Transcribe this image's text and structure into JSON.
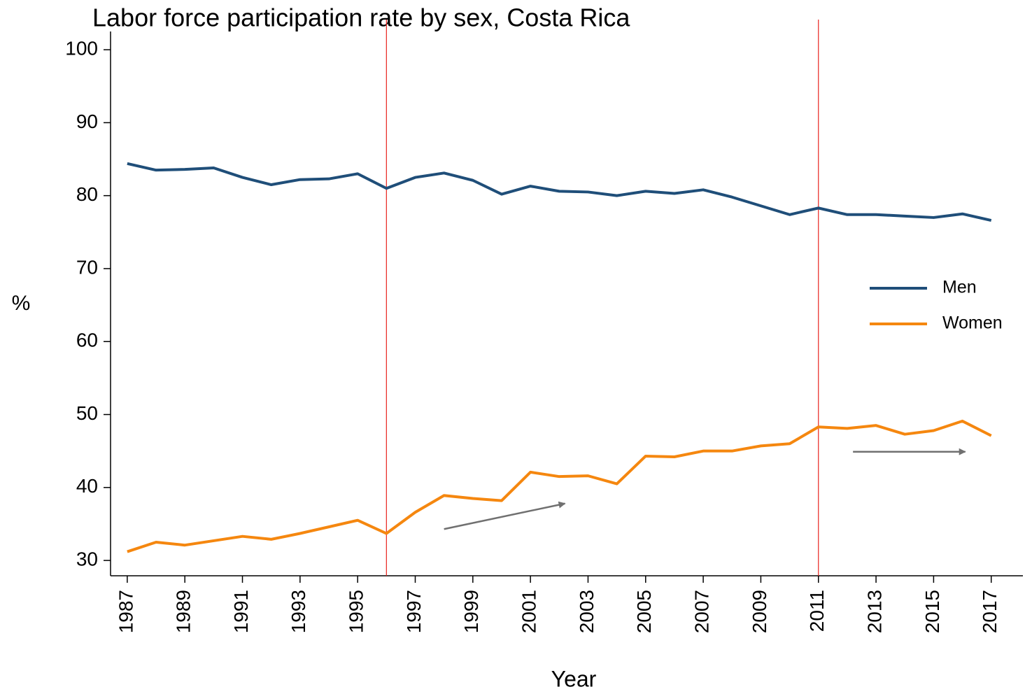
{
  "chart_data": {
    "type": "line",
    "title": "Labor force participation rate by sex, Costa Rica",
    "xlabel": "Year",
    "ylabel": "%",
    "x": [
      1987,
      1988,
      1989,
      1990,
      1991,
      1992,
      1993,
      1994,
      1995,
      1996,
      1997,
      1998,
      1999,
      2000,
      2001,
      2002,
      2003,
      2004,
      2005,
      2006,
      2007,
      2008,
      2009,
      2010,
      2011,
      2012,
      2013,
      2014,
      2015,
      2016,
      2017
    ],
    "series": [
      {
        "name": "Men",
        "color": "#1f4e79",
        "values": [
          84.4,
          83.5,
          83.6,
          83.8,
          82.5,
          81.5,
          82.2,
          82.3,
          83.0,
          81.0,
          82.5,
          83.1,
          82.1,
          80.2,
          81.3,
          80.6,
          80.5,
          80.0,
          80.6,
          80.3,
          80.8,
          79.8,
          78.6,
          77.4,
          78.3,
          77.4,
          77.4,
          77.2,
          77.0,
          77.5,
          76.6
        ]
      },
      {
        "name": "Women",
        "color": "#f5870f",
        "values": [
          31.2,
          32.5,
          32.1,
          32.7,
          33.3,
          32.9,
          33.7,
          34.6,
          35.5,
          33.7,
          36.6,
          38.9,
          38.5,
          38.2,
          42.1,
          41.5,
          41.6,
          40.5,
          44.3,
          44.2,
          45.0,
          45.0,
          45.7,
          46.0,
          48.3,
          48.1,
          48.5,
          47.3,
          47.8,
          49.1,
          47.1
        ]
      }
    ],
    "xlim": [
      1986.42,
      2018.1
    ],
    "ylim": [
      27.9,
      102.5
    ],
    "xticks": [
      1987,
      1989,
      1991,
      1993,
      1995,
      1997,
      1999,
      2001,
      2003,
      2005,
      2007,
      2009,
      2011,
      2013,
      2015,
      2017
    ],
    "yticks": [
      30,
      40,
      50,
      60,
      70,
      80,
      90,
      100
    ],
    "vlines": [
      1996,
      2011
    ],
    "vline_color": "#e8231d",
    "arrows": [
      {
        "x": [
          1998,
          2002.2
        ],
        "y": [
          34.3,
          37.8
        ]
      },
      {
        "x": [
          2012.2,
          2016.1
        ],
        "y": [
          44.9,
          44.9
        ]
      }
    ],
    "arrow_color": "#707070",
    "legend": "right"
  }
}
